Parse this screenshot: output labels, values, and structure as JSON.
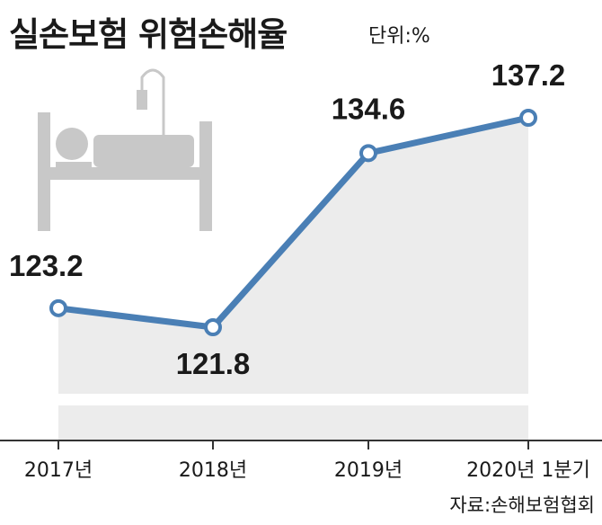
{
  "title": "실손보험 위험손해율",
  "unit": "단위:%",
  "source": "자료:손해보험협회",
  "colors": {
    "line": "#4a7fb5",
    "fill": "#ececec",
    "bed": "#c8c8c8",
    "axis": "#333333"
  },
  "icon": "hospital-bed-icon",
  "chart_data": {
    "type": "area",
    "categories": [
      "2017년",
      "2018년",
      "2019년",
      "2020년 1분기"
    ],
    "values": [
      123.2,
      121.8,
      134.6,
      137.2
    ],
    "value_labels": [
      "123.2",
      "121.8",
      "134.6",
      "137.2"
    ],
    "title": "실손보험 위험손해율",
    "ylabel": "단위:%",
    "grid": false
  }
}
